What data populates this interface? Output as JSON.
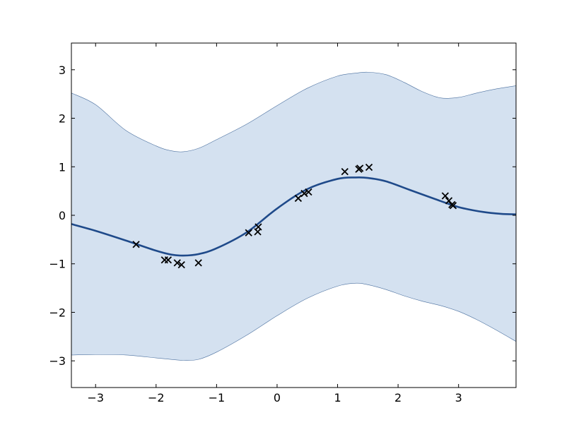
{
  "chart_data": {
    "type": "line",
    "title": "",
    "xlabel": "",
    "ylabel": "",
    "xlim": [
      -3.4,
      3.95
    ],
    "ylim": [
      -3.55,
      3.55
    ],
    "grid": false,
    "x_ticks": [
      -3,
      -2,
      -1,
      0,
      1,
      2,
      3
    ],
    "y_ticks": [
      -3,
      -2,
      -1,
      0,
      1,
      2,
      3
    ],
    "x_tick_labels": [
      "−3",
      "−2",
      "−1",
      "0",
      "1",
      "2",
      "3"
    ],
    "y_tick_labels": [
      "−3",
      "−2",
      "−1",
      "0",
      "1",
      "2",
      "3"
    ],
    "colors": {
      "mean_line": "#1f4a8a",
      "band_fill": "#d4e1f0",
      "band_edge": "#4a6f9e",
      "points": "#000000"
    },
    "series": [
      {
        "kind": "mean",
        "x": [
          -3.4,
          -3.0,
          -2.5,
          -2.0,
          -1.75,
          -1.55,
          -1.3,
          -1.0,
          -0.5,
          0.0,
          0.5,
          1.0,
          1.3,
          1.5,
          1.8,
          2.2,
          2.6,
          3.0,
          3.4,
          3.7,
          3.95
        ],
        "y": [
          -0.18,
          -0.32,
          -0.52,
          -0.73,
          -0.81,
          -0.83,
          -0.8,
          -0.68,
          -0.35,
          0.14,
          0.54,
          0.75,
          0.78,
          0.77,
          0.7,
          0.52,
          0.34,
          0.17,
          0.07,
          0.03,
          0.02
        ]
      },
      {
        "kind": "band_upper",
        "x": [
          -3.4,
          -3.0,
          -2.5,
          -2.0,
          -1.75,
          -1.55,
          -1.3,
          -1.0,
          -0.5,
          0.0,
          0.5,
          1.0,
          1.3,
          1.5,
          1.8,
          2.1,
          2.4,
          2.7,
          3.0,
          3.3,
          3.6,
          3.95
        ],
        "y": [
          2.52,
          2.28,
          1.75,
          1.43,
          1.33,
          1.31,
          1.38,
          1.56,
          1.88,
          2.26,
          2.62,
          2.87,
          2.93,
          2.95,
          2.9,
          2.74,
          2.55,
          2.42,
          2.43,
          2.52,
          2.6,
          2.67
        ]
      },
      {
        "kind": "band_lower",
        "x": [
          -3.4,
          -3.0,
          -2.5,
          -2.0,
          -1.75,
          -1.55,
          -1.3,
          -1.0,
          -0.5,
          0.0,
          0.5,
          1.0,
          1.3,
          1.5,
          1.8,
          2.1,
          2.4,
          2.7,
          3.0,
          3.3,
          3.6,
          3.95
        ],
        "y": [
          -2.88,
          -2.87,
          -2.88,
          -2.94,
          -2.97,
          -2.99,
          -2.97,
          -2.82,
          -2.47,
          -2.07,
          -1.71,
          -1.46,
          -1.4,
          -1.43,
          -1.53,
          -1.66,
          -1.77,
          -1.86,
          -1.98,
          -2.15,
          -2.35,
          -2.6
        ]
      },
      {
        "kind": "observations",
        "x": [
          -2.33,
          -1.86,
          -1.8,
          -1.65,
          -1.58,
          -1.3,
          -0.47,
          -0.32,
          -0.31,
          0.35,
          0.45,
          0.52,
          1.12,
          1.35,
          1.37,
          1.52,
          2.78,
          2.84,
          2.89,
          2.91
        ],
        "y": [
          -0.6,
          -0.92,
          -0.92,
          -0.98,
          -1.02,
          -0.98,
          -0.36,
          -0.34,
          -0.24,
          0.35,
          0.45,
          0.48,
          0.9,
          0.95,
          0.97,
          0.99,
          0.4,
          0.3,
          0.22,
          0.2
        ]
      }
    ]
  }
}
